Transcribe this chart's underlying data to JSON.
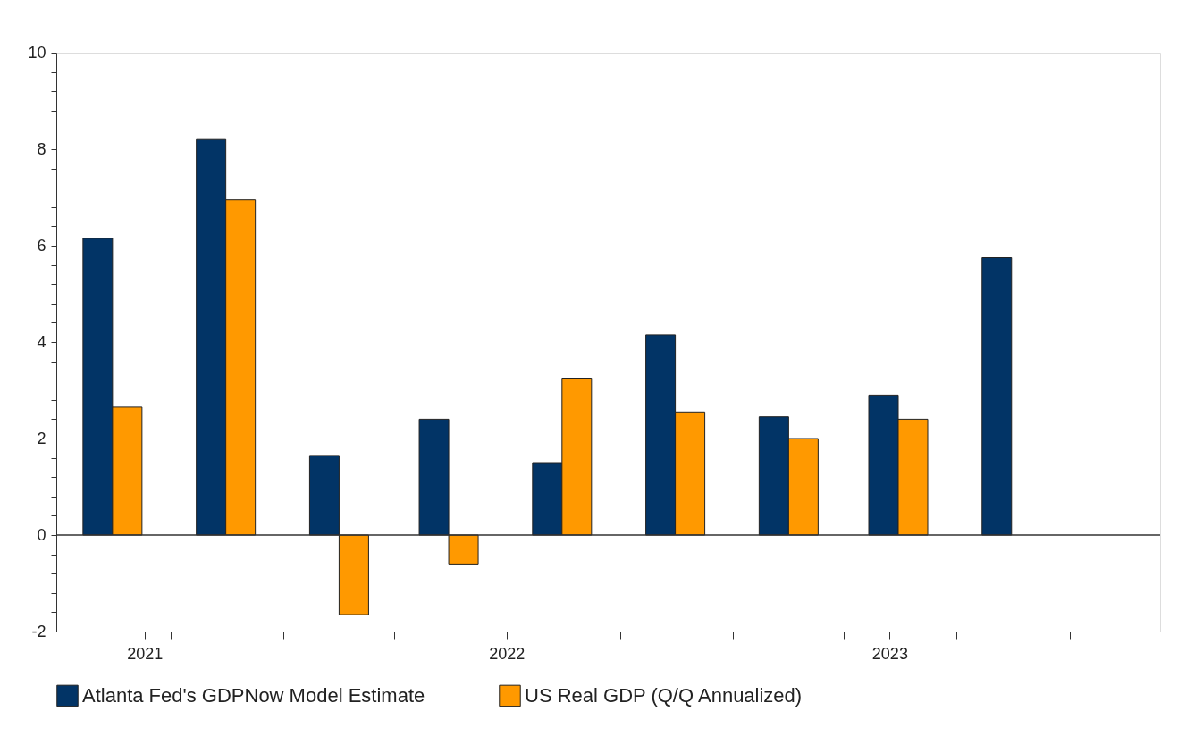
{
  "chart_data": {
    "type": "bar",
    "x": [
      "2021-08-15",
      "2021-11-15",
      "2022-02-15",
      "2022-05-15",
      "2022-08-15",
      "2022-11-15",
      "2023-02-15",
      "2023-05-15",
      "2023-08-15"
    ],
    "series": [
      {
        "name": "Atlanta Fed's GDPNow Model Estimate",
        "color": "#023466",
        "values": [
          6.15,
          8.2,
          1.65,
          2.4,
          1.5,
          4.15,
          2.45,
          2.9,
          5.75
        ]
      },
      {
        "name": "US Real GDP (Q/Q Annualized)",
        "color": "#ff9900",
        "values": [
          2.65,
          6.95,
          -1.65,
          -0.6,
          3.25,
          2.55,
          2.0,
          2.4,
          null
        ]
      }
    ],
    "xlim": [
      "2021-07-04",
      "2023-12-10"
    ],
    "xticks": [
      {
        "value": "2021-09-10",
        "label": "2021"
      },
      {
        "value": "2021-10-01",
        "label": null
      },
      {
        "value": "2022-01-01",
        "label": null
      },
      {
        "value": "2022-04-01",
        "label": null
      },
      {
        "value": "2022-07-01",
        "label": "2022"
      },
      {
        "value": "2022-10-01",
        "label": null
      },
      {
        "value": "2023-01-01",
        "label": null
      },
      {
        "value": "2023-04-01",
        "label": null
      },
      {
        "value": "2023-05-08",
        "label": "2023"
      },
      {
        "value": "2023-07-01",
        "label": null
      },
      {
        "value": "2023-10-01",
        "label": null
      }
    ],
    "ylim": [
      -2,
      10
    ],
    "yticks": [
      -2,
      {
        "value": -1.6,
        "label": null
      },
      {
        "value": -1.2,
        "label": null
      },
      {
        "value": -0.8,
        "label": null
      },
      {
        "value": -0.4,
        "label": null
      },
      0,
      {
        "value": 0.4,
        "label": null
      },
      {
        "value": 0.8,
        "label": null
      },
      {
        "value": 1.2,
        "label": null
      },
      {
        "value": 1.6,
        "label": null
      },
      2,
      {
        "value": 2.4,
        "label": null
      },
      {
        "value": 2.8,
        "label": null
      },
      {
        "value": 3.2,
        "label": null
      },
      {
        "value": 3.6,
        "label": null
      },
      4,
      {
        "value": 4.4,
        "label": null
      },
      {
        "value": 4.8,
        "label": null
      },
      {
        "value": 5.2,
        "label": null
      },
      {
        "value": 5.6,
        "label": null
      },
      6,
      {
        "value": 6.4,
        "label": null
      },
      {
        "value": 6.8,
        "label": null
      },
      {
        "value": 7.2,
        "label": null
      },
      {
        "value": 7.6,
        "label": null
      },
      8,
      {
        "value": 8.4,
        "label": null
      },
      {
        "value": 8.8,
        "label": null
      },
      {
        "value": 9.2,
        "label": null
      },
      {
        "value": 9.6,
        "label": null
      },
      10
    ],
    "ref_lines": [
      {
        "axis": "y",
        "value": 0
      }
    ],
    "grid": false,
    "legend": "bottom"
  }
}
